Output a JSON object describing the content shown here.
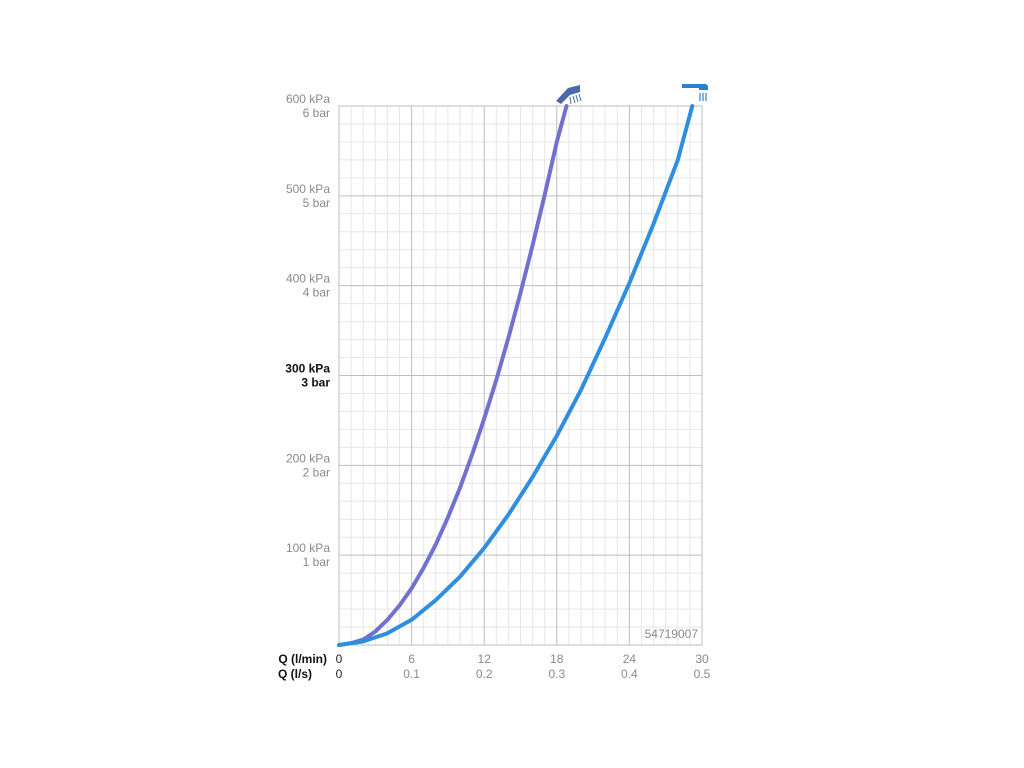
{
  "chart_data": {
    "type": "line",
    "x_axis_names": [
      "Q (l/min)",
      "Q (l/s)"
    ],
    "x_ticks_lmin": [
      "0",
      "6",
      "12",
      "18",
      "24",
      "30"
    ],
    "x_ticks_ls": [
      "0",
      "0.1",
      "0.2",
      "0.3",
      "0.4",
      "0.5"
    ],
    "xlim": [
      0,
      30
    ],
    "ylim": [
      0,
      600
    ],
    "y_ticks": [
      {
        "value": 100,
        "kpa": "100 kPa",
        "bar": "1 bar",
        "emphasis": false
      },
      {
        "value": 200,
        "kpa": "200 kPa",
        "bar": "2 bar",
        "emphasis": false
      },
      {
        "value": 300,
        "kpa": "300 kPa",
        "bar": "3 bar",
        "emphasis": true
      },
      {
        "value": 400,
        "kpa": "400 kPa",
        "bar": "4 bar",
        "emphasis": false
      },
      {
        "value": 500,
        "kpa": "500 kPa",
        "bar": "5 bar",
        "emphasis": false
      },
      {
        "value": 600,
        "kpa": "600 kPa",
        "bar": "6 bar",
        "emphasis": false
      }
    ],
    "series": [
      {
        "icon": "hand-shower-icon",
        "color": "#7171cf",
        "x": [
          0,
          1,
          2,
          3,
          4,
          5,
          6,
          7,
          8,
          9,
          10,
          11,
          12,
          13,
          14,
          15,
          16,
          17,
          18,
          18.8
        ],
        "y": [
          0,
          2,
          6,
          15,
          28,
          44,
          63,
          86,
          112,
          142,
          175,
          212,
          252,
          295,
          342,
          392,
          445,
          501,
          560,
          600
        ]
      },
      {
        "icon": "overhead-shower-icon",
        "color": "#2f8ee0",
        "x": [
          0,
          2,
          4,
          6,
          8,
          10,
          12,
          14,
          16,
          18,
          20,
          22,
          24,
          26,
          28,
          29.2
        ],
        "y": [
          0,
          4,
          13,
          28,
          50,
          76,
          108,
          145,
          187,
          233,
          284,
          342,
          403,
          469,
          540,
          600
        ]
      }
    ],
    "grid": true,
    "annotation": "54719007"
  }
}
